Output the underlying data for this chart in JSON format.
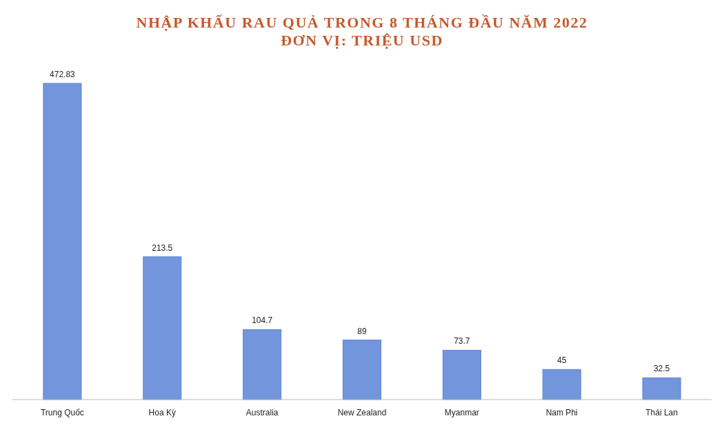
{
  "chart_data": {
    "type": "bar",
    "title": "NHẬP KHẨU RAU QUẢ TRONG 8 THÁNG ĐẦU NĂM 2022\nĐƠN VỊ: TRIỆU USD",
    "categories": [
      "Trung Quốc",
      "Hoa Kỳ",
      "Australia",
      "New Zealand",
      "Myanmar",
      "Nam Phi",
      "Thái Lan"
    ],
    "values": [
      472.83,
      213.5,
      104.7,
      89,
      73.7,
      45,
      32.5
    ],
    "color": "#5b83d6",
    "data_labels": true
  }
}
